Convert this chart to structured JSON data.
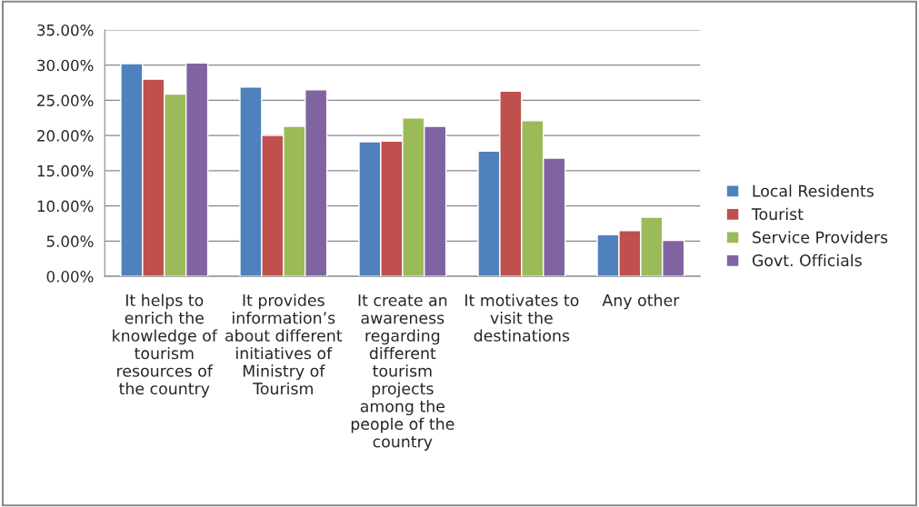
{
  "chart_data": {
    "type": "bar",
    "categories": [
      "It helps to\nenrich the\nknowledge of\ntourism\nresources of\nthe country",
      "It provides\ninformation’s\nabout different\ninitiatives of\nMinistry of\nTourism",
      "It create an\nawareness\nregarding\ndifferent\ntourism\nprojects\namong the\npeople of the\ncountry",
      "It motivates to\nvisit the\ndestinations",
      "Any other"
    ],
    "series": [
      {
        "name": "Local Residents",
        "color": "#4f81bd",
        "values": [
          30.2,
          26.9,
          19.1,
          17.8,
          5.9
        ]
      },
      {
        "name": "Tourist",
        "color": "#c0504d",
        "values": [
          28.0,
          20.0,
          19.2,
          26.3,
          6.5
        ]
      },
      {
        "name": "Service Providers",
        "color": "#9bbb59",
        "values": [
          25.9,
          21.3,
          22.5,
          22.1,
          8.4
        ]
      },
      {
        "name": "Govt. Officials",
        "color": "#8064a2",
        "values": [
          30.3,
          26.5,
          21.3,
          16.8,
          5.1
        ]
      }
    ],
    "ylim": [
      0,
      35
    ],
    "yticks": [
      {
        "value": 0,
        "label": "0.00%"
      },
      {
        "value": 5,
        "label": "5.00%"
      },
      {
        "value": 10,
        "label": "10.00%"
      },
      {
        "value": 15,
        "label": "15.00%"
      },
      {
        "value": 20,
        "label": "20.00%"
      },
      {
        "value": 25,
        "label": "25.00%"
      },
      {
        "value": 30,
        "label": "30.00%"
      },
      {
        "value": 35,
        "label": "35.00%"
      }
    ],
    "grid": "y",
    "legend": "right"
  }
}
